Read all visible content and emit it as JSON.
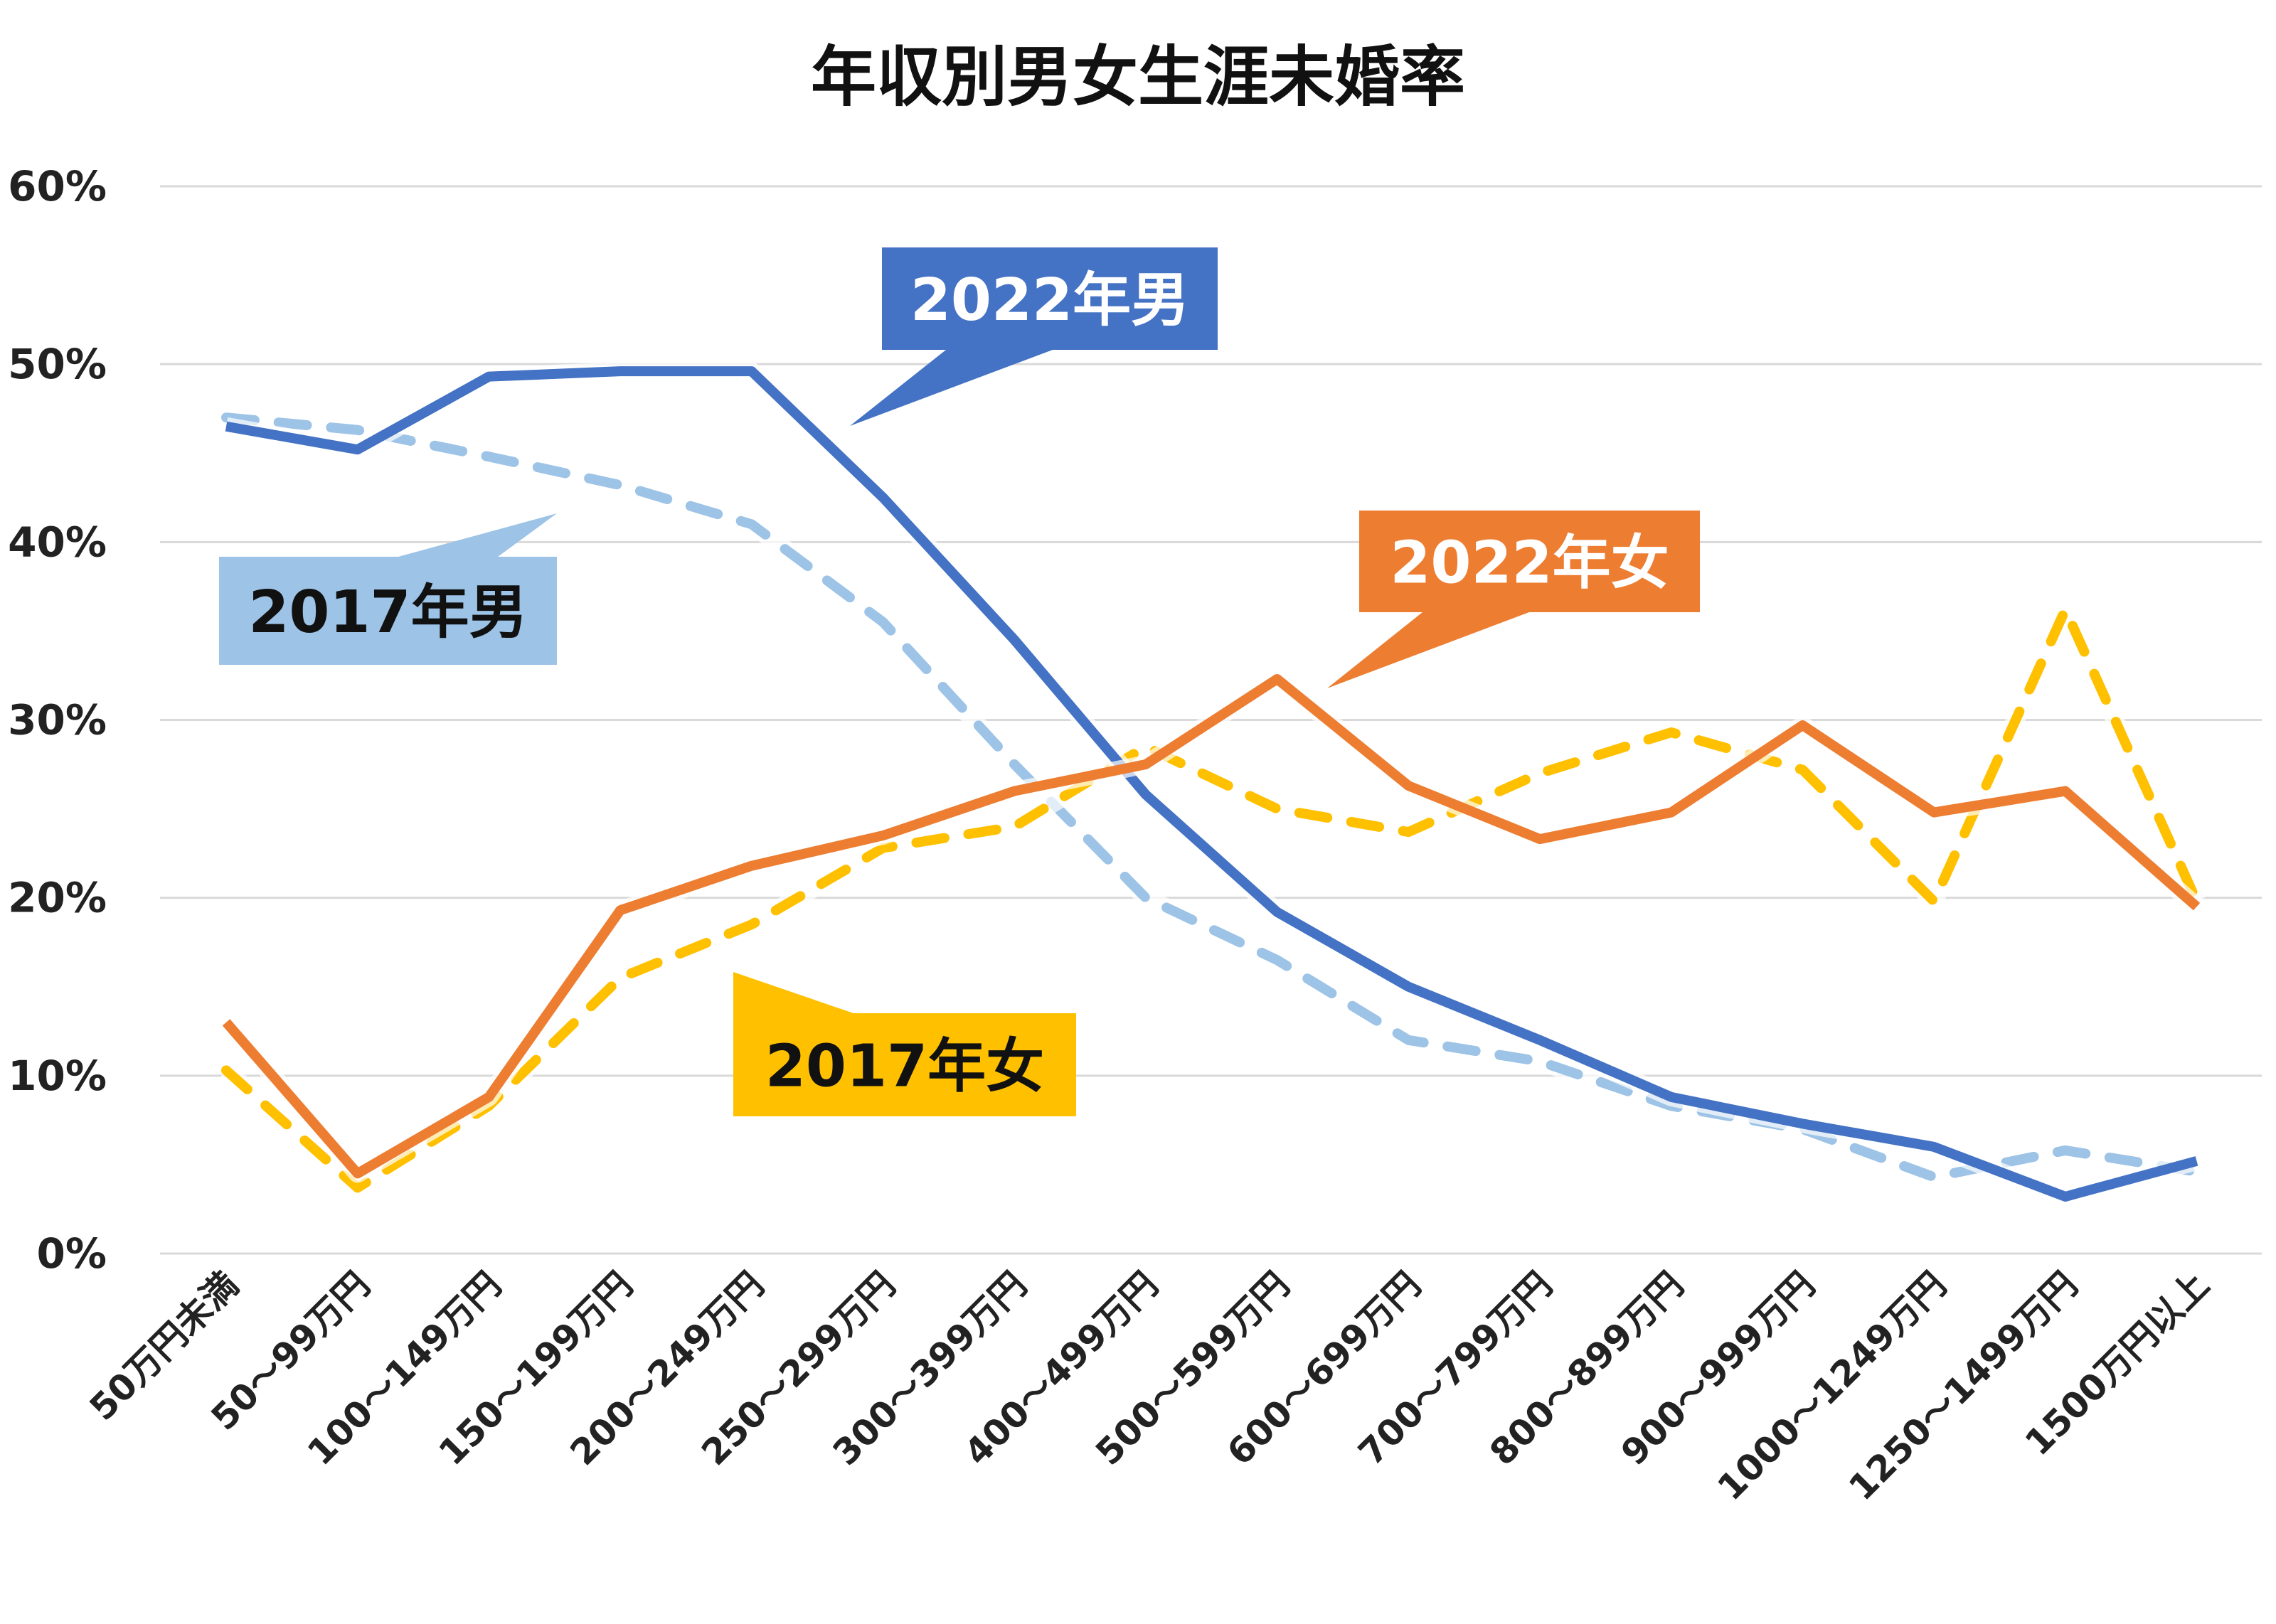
{
  "chart_data": {
    "type": "line",
    "title": "年収別男女生涯未婚率",
    "xlabel": "",
    "ylabel": "",
    "ylim": [
      0,
      60
    ],
    "yticks": [
      "0%",
      "10%",
      "20%",
      "30%",
      "40%",
      "50%",
      "60%"
    ],
    "grid": true,
    "categories": [
      "50万円未満",
      "50～99万円",
      "100～149万円",
      "150～199万円",
      "200～249万円",
      "250～299万円",
      "300～399万円",
      "400～499万円",
      "500～599万円",
      "600～699万円",
      "700～799万円",
      "800～899万円",
      "900～999万円",
      "1000～1249万円",
      "1250～1499万円",
      "1500万円以上"
    ],
    "series": [
      {
        "name": "2022年男",
        "color": "#4472c4",
        "text_color": "#ffffff",
        "dashed": false,
        "values": [
          46.5,
          45.2,
          49.3,
          49.6,
          49.6,
          42.5,
          34.5,
          25.8,
          19.2,
          15.0,
          12.0,
          8.8,
          7.3,
          6.0,
          3.2,
          5.2
        ]
      },
      {
        "name": "2017年男",
        "color": "#9dc3e6",
        "text_color": "#111111",
        "dashed": true,
        "values": [
          47.0,
          46.3,
          44.8,
          43.2,
          41.0,
          35.5,
          27.5,
          20.0,
          16.5,
          12.0,
          10.8,
          8.3,
          7.0,
          4.3,
          5.8,
          4.6
        ]
      },
      {
        "name": "2022年女",
        "color": "#ed7d31",
        "text_color": "#ffffff",
        "dashed": false,
        "values": [
          13.0,
          4.5,
          8.8,
          19.3,
          21.8,
          23.5,
          26.0,
          27.5,
          32.3,
          26.3,
          23.3,
          24.8,
          29.7,
          24.8,
          26.0,
          19.5
        ]
      },
      {
        "name": "2017年女",
        "color": "#ffc000",
        "text_color": "#111111",
        "dashed": true,
        "values": [
          10.3,
          3.7,
          8.3,
          15.5,
          18.5,
          22.8,
          24.0,
          28.5,
          25.0,
          23.7,
          27.0,
          29.3,
          27.2,
          19.8,
          36.2,
          19.8
        ]
      }
    ]
  }
}
